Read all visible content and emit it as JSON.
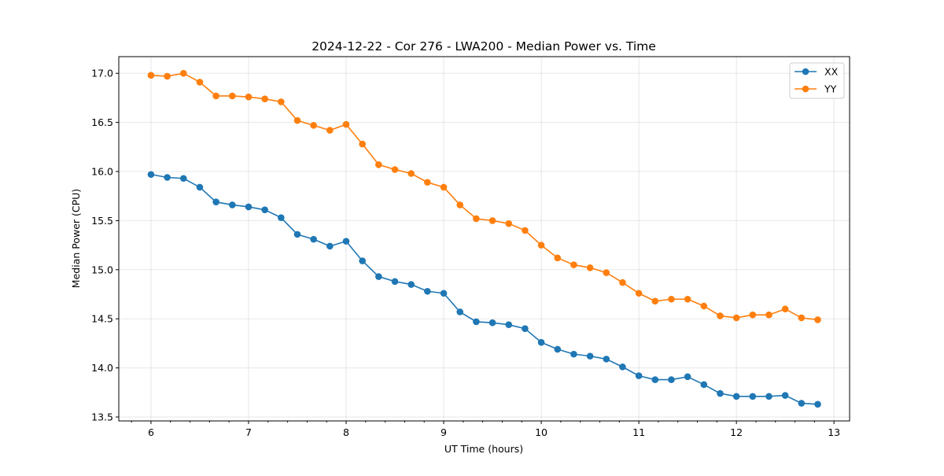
{
  "chart_data": {
    "type": "line",
    "title": "2024-12-22 - Cor 276 - LWA200 - Median Power vs. Time",
    "xlabel": "UT Time (hours)",
    "ylabel": "Median Power (CPU)",
    "xlim": [
      5.67,
      13.16
    ],
    "ylim": [
      13.46,
      17.17
    ],
    "xticks": [
      6,
      7,
      8,
      9,
      10,
      11,
      12,
      13
    ],
    "yticks": [
      "13.5",
      "14.0",
      "14.5",
      "15.0",
      "15.5",
      "16.0",
      "16.5",
      "17.0"
    ],
    "grid": true,
    "legend_position": "top-right",
    "x": [
      6.0,
      6.1667,
      6.3333,
      6.5,
      6.6667,
      6.8333,
      7.0,
      7.1667,
      7.3333,
      7.5,
      7.6667,
      7.8333,
      8.0,
      8.1667,
      8.3333,
      8.5,
      8.6667,
      8.8333,
      9.0,
      9.1667,
      9.3333,
      9.5,
      9.6667,
      9.8333,
      10.0,
      10.1667,
      10.3333,
      10.5,
      10.6667,
      10.8333,
      11.0,
      11.1667,
      11.3333,
      11.5,
      11.6667,
      11.8333,
      12.0,
      12.1667,
      12.3333,
      12.5,
      12.6667,
      12.8333
    ],
    "series": [
      {
        "name": "XX",
        "color": "#1f77b4",
        "values": [
          15.97,
          15.94,
          15.93,
          15.84,
          15.69,
          15.66,
          15.64,
          15.61,
          15.53,
          15.36,
          15.31,
          15.24,
          15.29,
          15.09,
          14.93,
          14.88,
          14.85,
          14.78,
          14.76,
          14.57,
          14.47,
          14.46,
          14.44,
          14.4,
          14.26,
          14.19,
          14.14,
          14.12,
          14.09,
          14.01,
          13.92,
          13.88,
          13.88,
          13.91,
          13.83,
          13.74,
          13.71,
          13.71,
          13.71,
          13.72,
          13.64,
          13.63
        ]
      },
      {
        "name": "YY",
        "color": "#ff7f0e",
        "values": [
          16.98,
          16.97,
          17.0,
          16.91,
          16.77,
          16.77,
          16.76,
          16.74,
          16.71,
          16.52,
          16.47,
          16.42,
          16.48,
          16.28,
          16.07,
          16.02,
          15.98,
          15.89,
          15.84,
          15.66,
          15.52,
          15.5,
          15.47,
          15.4,
          15.25,
          15.12,
          15.05,
          15.02,
          14.97,
          14.87,
          14.76,
          14.68,
          14.7,
          14.7,
          14.63,
          14.53,
          14.51,
          14.54,
          14.54,
          14.6,
          14.51,
          14.49
        ]
      }
    ]
  }
}
